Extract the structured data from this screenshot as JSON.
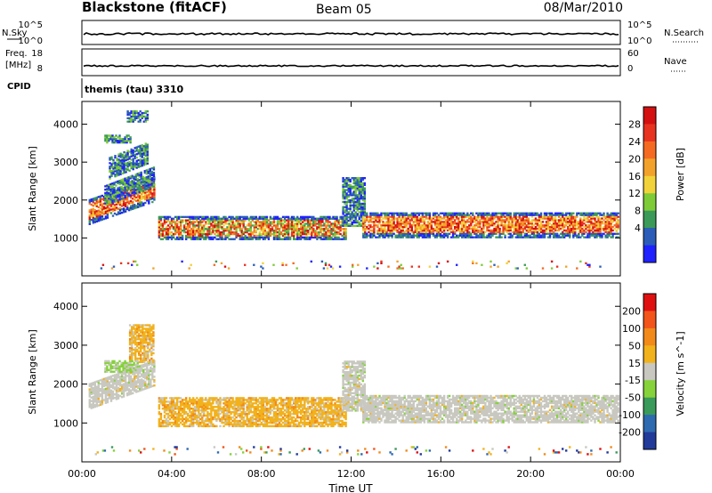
{
  "header": {
    "station": "Blackstone (fitACF)",
    "beam": "Beam 05",
    "date": "08/Mar/2010"
  },
  "strip_labels": {
    "nsky": "N.Sky",
    "nsky_ticks": [
      "10^5",
      "10^0"
    ],
    "nsearch": "N.Search",
    "nsearch_ticks": [
      "10^5",
      "10^0"
    ],
    "freq": "Freq.",
    "freq_unit": "[MHz]",
    "freq_ticks": [
      "18",
      "8"
    ],
    "nave": "Nave",
    "nave_ticks": [
      "60",
      "0"
    ],
    "cpid": "CPID",
    "cpid_value": "themis (tau) 3310"
  },
  "chart_data": [
    {
      "type": "heatmap",
      "title": "",
      "ylabel": "Slant Range [km]",
      "xlabel": "",
      "xlim": [
        0,
        24
      ],
      "ylim": [
        0,
        4600
      ],
      "xticks": [
        "00:00",
        "04:00",
        "08:00",
        "12:00",
        "16:00",
        "20:00",
        "00:00"
      ],
      "yticks": [
        1000,
        2000,
        3000,
        4000
      ],
      "colorbar": {
        "label": "Power [dB]",
        "ticks": [
          "4",
          "8",
          "12",
          "16",
          "20",
          "24",
          "28"
        ],
        "colors": [
          "#1f22ff",
          "#2b5db8",
          "#3c9a58",
          "#7ecb38",
          "#f2d23a",
          "#f2a22a",
          "#f56a22",
          "#e83320",
          "#d41010"
        ]
      },
      "echo_regions": [
        {
          "t0": 0.3,
          "t1": 3.2,
          "r0": 1350,
          "r1": 2000,
          "tilt": 600,
          "value_class": "high"
        },
        {
          "t0": 1.0,
          "t1": 3.2,
          "r0": 1850,
          "r1": 2350,
          "tilt": 500,
          "value_class": "low"
        },
        {
          "t0": 1.2,
          "t1": 2.9,
          "r0": 2550,
          "r1": 3100,
          "tilt": 400,
          "value_class": "low"
        },
        {
          "t0": 1.0,
          "t1": 2.2,
          "r0": 3500,
          "r1": 3700,
          "tilt": 0,
          "value_class": "low"
        },
        {
          "t0": 2.0,
          "t1": 2.9,
          "r0": 4050,
          "r1": 4350,
          "tilt": 0,
          "value_class": "low"
        },
        {
          "t0": 3.4,
          "t1": 11.8,
          "r0": 950,
          "r1": 1550,
          "tilt": 0,
          "value_class": "mixed"
        },
        {
          "t0": 11.6,
          "t1": 12.6,
          "r0": 1300,
          "r1": 2600,
          "tilt": 0,
          "value_class": "low"
        },
        {
          "t0": 12.5,
          "t1": 24.0,
          "r0": 1000,
          "r1": 1650,
          "tilt": 0,
          "value_class": "high"
        },
        {
          "t0": 0.5,
          "t1": 24.0,
          "r0": 180,
          "r1": 380,
          "tilt": 0,
          "value_class": "sparse"
        }
      ]
    },
    {
      "type": "heatmap",
      "title": "",
      "ylabel": "Slant Range [km]",
      "xlabel": "Time UT",
      "xlim": [
        0,
        24
      ],
      "ylim": [
        0,
        4600
      ],
      "xticks": [
        "00:00",
        "04:00",
        "08:00",
        "12:00",
        "16:00",
        "20:00",
        "00:00"
      ],
      "yticks": [
        1000,
        2000,
        3000,
        4000
      ],
      "colorbar": {
        "label": "Velocity [m s^-1]",
        "ticks": [
          "200",
          "100",
          "50",
          "15",
          "-15",
          "-50",
          "-100",
          "-200"
        ],
        "colors": [
          "#223a9a",
          "#2e6ab0",
          "#3a9a5a",
          "#86d23a",
          "#c8c8c0",
          "#f2b21c",
          "#f28a1a",
          "#f2541a",
          "#e01010"
        ]
      },
      "echo_regions": [
        {
          "t0": 0.3,
          "t1": 3.2,
          "r0": 1350,
          "r1": 2000,
          "tilt": 600,
          "value_class": "grey"
        },
        {
          "t0": 2.1,
          "t1": 3.2,
          "r0": 2550,
          "r1": 3500,
          "tilt": 0,
          "value_class": "orange"
        },
        {
          "t0": 1.0,
          "t1": 2.5,
          "r0": 2300,
          "r1": 2600,
          "tilt": 0,
          "value_class": "green"
        },
        {
          "t0": 3.4,
          "t1": 11.8,
          "r0": 900,
          "r1": 1650,
          "tilt": 0,
          "value_class": "orange"
        },
        {
          "t0": 11.6,
          "t1": 12.6,
          "r0": 1300,
          "r1": 2600,
          "tilt": 0,
          "value_class": "grey"
        },
        {
          "t0": 12.5,
          "t1": 24.0,
          "r0": 1000,
          "r1": 1700,
          "tilt": 0,
          "value_class": "grey"
        },
        {
          "t0": 0.5,
          "t1": 24.0,
          "r0": 180,
          "r1": 380,
          "tilt": 0,
          "value_class": "sparse"
        }
      ]
    }
  ]
}
